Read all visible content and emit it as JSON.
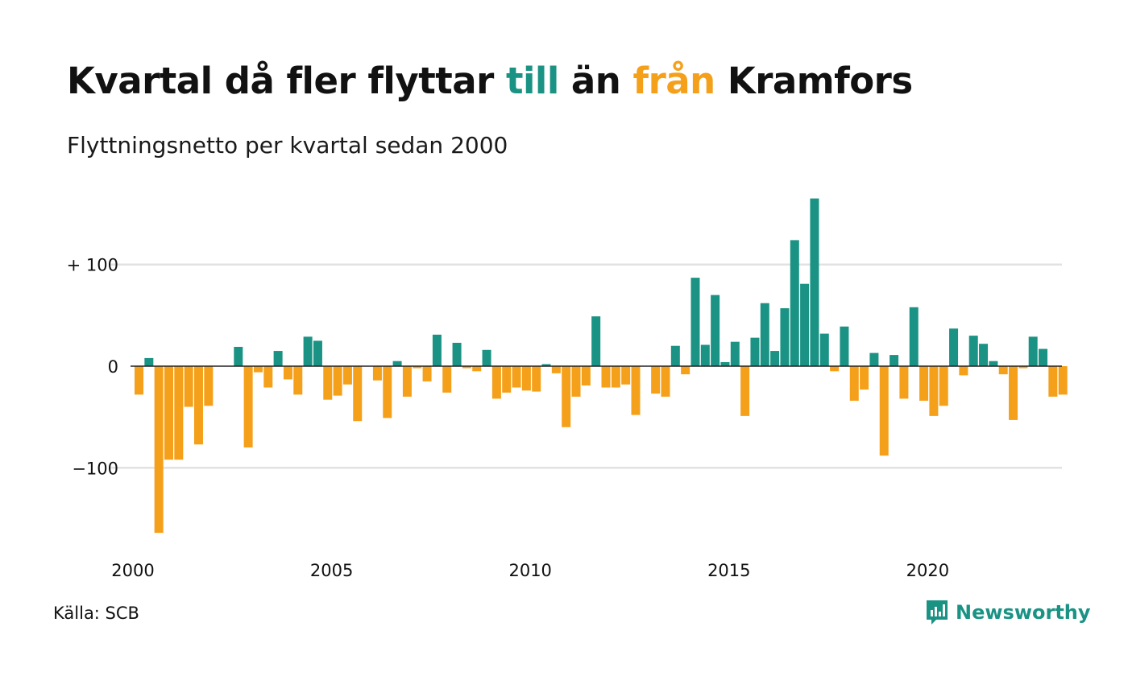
{
  "title": {
    "part1": "Kvartal då fler flyttar ",
    "highlight_in": "till",
    "part2": " än ",
    "highlight_out": "från",
    "part3": " Kramfors"
  },
  "subtitle": "Flyttningsnetto per kvartal sedan 2000",
  "source": "Källa: SCB",
  "brand": {
    "name": "Newsworthy",
    "icon": "newsworthy-logo-icon"
  },
  "colors": {
    "positive": "#1a9384",
    "negative": "#f5a01a",
    "grid": "#e2e2e2",
    "zero_line": "#222222"
  },
  "chart_data": {
    "type": "bar",
    "x_start": "2000 Q1",
    "x_step": "quarter",
    "xtick_labels": [
      "2000",
      "2005",
      "2010",
      "2015",
      "2020"
    ],
    "ytick_labels": [
      "+ 100",
      "0",
      "−100"
    ],
    "ytick_values": [
      100,
      0,
      -100
    ],
    "ylim": [
      -170,
      170
    ],
    "grid": true,
    "values": [
      -28,
      8,
      -164,
      -92,
      -92,
      -40,
      -77,
      -39,
      0,
      0,
      19,
      -80,
      -6,
      -21,
      15,
      -13,
      -28,
      29,
      25,
      -33,
      -29,
      -18,
      -54,
      0,
      -14,
      -51,
      5,
      -30,
      -2,
      -15,
      31,
      -26,
      23,
      -2,
      -5,
      16,
      -32,
      -26,
      -21,
      -24,
      -25,
      2,
      -7,
      -60,
      -30,
      -19,
      49,
      -21,
      -21,
      -18,
      -48,
      0,
      -27,
      -30,
      20,
      -8,
      87,
      21,
      70,
      4,
      24,
      -49,
      28,
      62,
      15,
      57,
      124,
      81,
      165,
      32,
      -5,
      39,
      -34,
      -23,
      13,
      -88,
      11,
      -32,
      58,
      -34,
      -49,
      -39,
      37,
      -9,
      30,
      22,
      5,
      -8,
      -53,
      -2,
      29,
      17,
      -30,
      -28
    ]
  }
}
